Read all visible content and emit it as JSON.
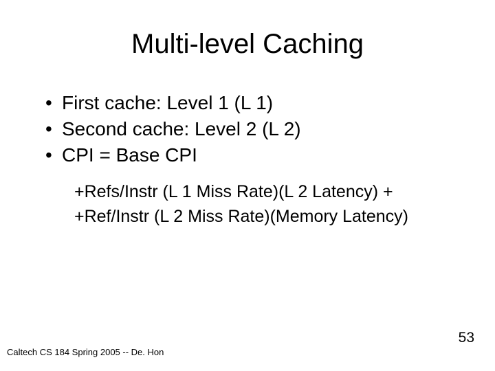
{
  "title": "Multi-level Caching",
  "bullets": [
    "First cache: Level 1 (L 1)",
    "Second cache: Level 2 (L 2)",
    "CPI = Base CPI"
  ],
  "sublines": [
    "+Refs/Instr (L 1 Miss Rate)(L 2 Latency) +",
    "+Ref/Instr (L 2 Miss Rate)(Memory Latency)"
  ],
  "footer": "Caltech CS 184 Spring 2005 -- De. Hon",
  "page_number": "53",
  "colors": {
    "bg": "#ffffff",
    "text": "#000000"
  },
  "bullet_char": "•",
  "fonts": {
    "title_size": 40,
    "bullet_size": 28,
    "sub_size": 25,
    "footer_size": 13,
    "page_size": 21
  }
}
